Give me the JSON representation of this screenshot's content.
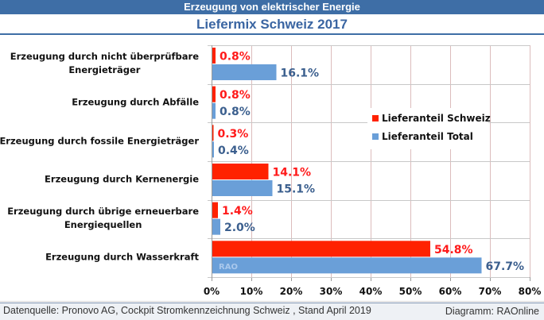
{
  "header": {
    "banner": "Erzeugung von elektrischer Energie",
    "title": "Liefermix Schweiz 2017"
  },
  "legend": {
    "items": [
      {
        "label": "Lieferanteil Schweiz",
        "color": "#ff2200"
      },
      {
        "label": "Lieferanteil Total",
        "color": "#6a9fd8"
      }
    ]
  },
  "watermark": "RAO",
  "footer": {
    "source": "Datenquelle: Pronovo AG, Cockpit Stromkennzeichnung Schweiz , Stand April 2019",
    "credit": "Diagramm: RAOnline"
  },
  "chart_data": {
    "type": "bar",
    "orientation": "horizontal",
    "title": "Liefermix Schweiz 2017",
    "subtitle": "Erzeugung von elektrischer Energie",
    "xlabel": "",
    "ylabel": "",
    "xlim": [
      0,
      80
    ],
    "x_ticks": [
      "0%",
      "10%",
      "20%",
      "30%",
      "40%",
      "50%",
      "60%",
      "70%",
      "80%"
    ],
    "grid": true,
    "legend_position": "right-middle",
    "categories": [
      [
        "Erzeugung durch nicht überprüfbare",
        "Energieträger"
      ],
      [
        "Erzeugung durch Abfälle"
      ],
      [
        "Erzeugung durch fossile Energieträger"
      ],
      [
        "Erzeugung durch Kernenergie"
      ],
      [
        "Erzeugung durch übrige erneuerbare",
        "Energiequellen"
      ],
      [
        "Erzeugung durch Wasserkraft"
      ]
    ],
    "series": [
      {
        "name": "Lieferanteil Schweiz",
        "color": "#ff2200",
        "label_color": "#ff1a1a",
        "values": [
          0.8,
          0.8,
          0.3,
          14.1,
          1.4,
          54.8
        ],
        "labels": [
          "0.8%",
          "0.8%",
          "0.3%",
          "14.1%",
          "1.4%",
          "54.8%"
        ]
      },
      {
        "name": "Lieferanteil Total",
        "color": "#6a9fd8",
        "label_color": "#3b5f8e",
        "values": [
          16.1,
          0.8,
          0.4,
          15.1,
          2.0,
          67.7
        ],
        "labels": [
          "16.1%",
          "0.8%",
          "0.4%",
          "15.1%",
          "2.0%",
          "67.7%"
        ]
      }
    ]
  }
}
